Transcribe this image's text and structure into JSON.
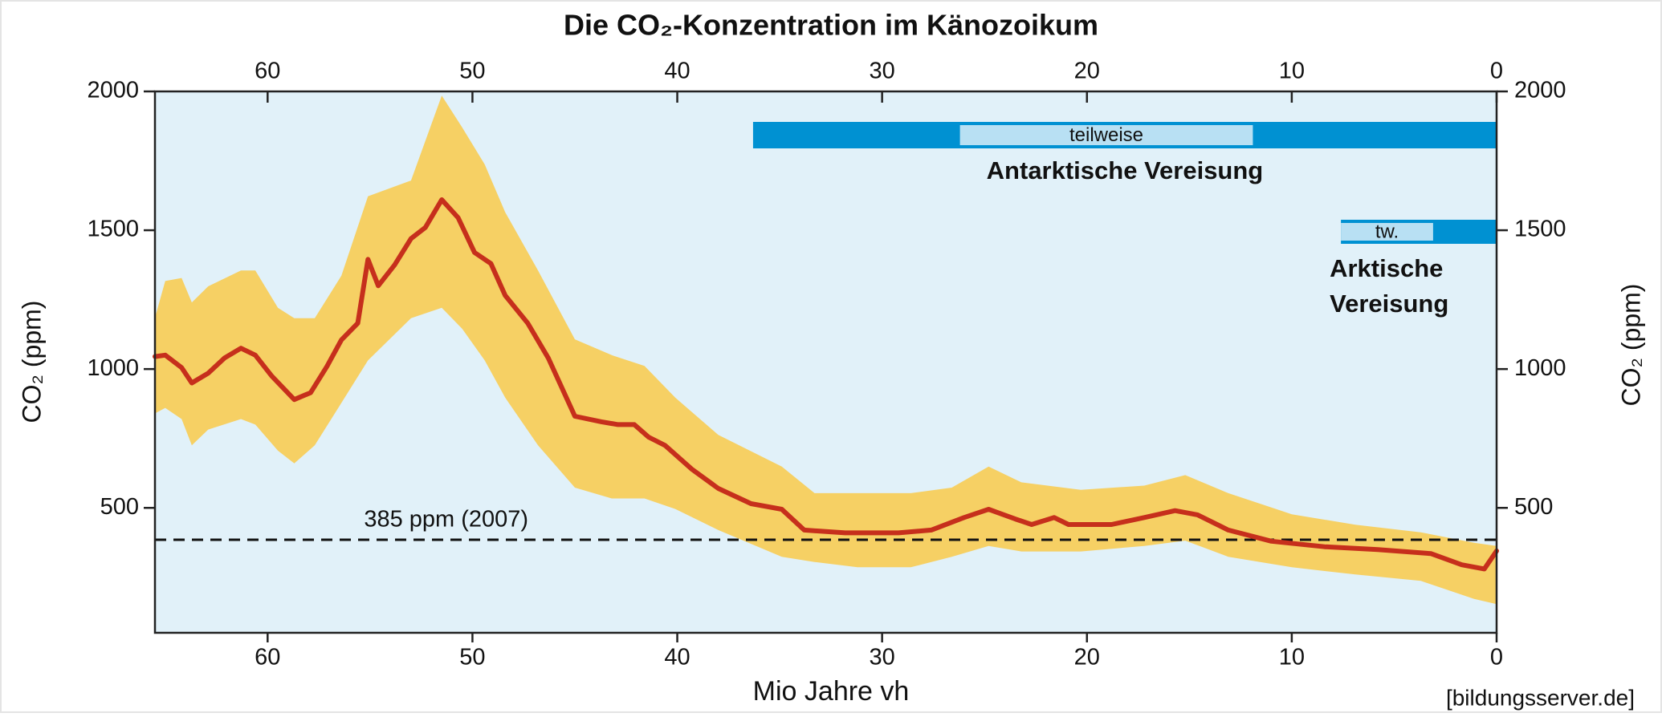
{
  "chart_data": {
    "type": "line",
    "title": "Die CO₂-Konzentration im Känozoikum",
    "x_label": "Mio Jahre vh",
    "y_label": "CO₂ (ppm)",
    "y2_label": "CO₂ (ppm)",
    "source": "[bildungsserver.de]",
    "xlim": [
      65.5,
      0
    ],
    "xticks": [
      60,
      50,
      40,
      30,
      20,
      10,
      0
    ],
    "ylim": [
      50,
      2000
    ],
    "yticks": [
      500,
      1000,
      1500,
      2000
    ],
    "y2lim": [
      50,
      2000
    ],
    "y2ticks": [
      500,
      1000,
      1500,
      2000
    ],
    "color": "#c62f1c",
    "x": [
      65.5,
      65.0,
      64.2,
      63.7,
      62.9,
      62.1,
      61.3,
      60.6,
      59.8,
      58.7,
      57.9,
      57.1,
      56.4,
      55.6,
      55.1,
      54.6,
      53.8,
      53.0,
      52.3,
      51.5,
      50.7,
      49.9,
      49.1,
      48.4,
      47.3,
      46.3,
      45.0,
      43.7,
      42.9,
      42.1,
      41.4,
      40.6,
      39.3,
      38.0,
      36.4,
      34.9,
      33.8,
      31.8,
      29.2,
      27.6,
      26.0,
      24.8,
      23.5,
      22.7,
      21.6,
      20.9,
      18.8,
      17.2,
      15.7,
      14.6,
      13.1,
      11.0,
      8.4,
      5.8,
      3.2,
      1.7,
      0.6,
      0
    ],
    "values": [
      1045,
      1050,
      1005,
      950,
      985,
      1040,
      1075,
      1050,
      975,
      890,
      915,
      1010,
      1105,
      1165,
      1395,
      1300,
      1375,
      1470,
      1510,
      1610,
      1545,
      1420,
      1380,
      1265,
      1165,
      1040,
      830,
      810,
      800,
      800,
      755,
      725,
      640,
      570,
      515,
      495,
      420,
      410,
      410,
      420,
      465,
      495,
      460,
      440,
      465,
      440,
      440,
      465,
      490,
      475,
      420,
      380,
      360,
      350,
      335,
      295,
      280,
      345
    ],
    "band_color": "#f6d064",
    "band_x": [
      65.5,
      65.0,
      64.2,
      63.7,
      62.9,
      61.3,
      60.6,
      59.5,
      58.7,
      57.7,
      56.4,
      55.1,
      53.0,
      51.5,
      50.5,
      49.4,
      48.4,
      46.8,
      45.0,
      43.2,
      41.6,
      40.1,
      38.0,
      34.9,
      33.3,
      31.2,
      28.6,
      26.6,
      24.8,
      23.2,
      20.3,
      17.2,
      15.2,
      13.1,
      10.0,
      6.9,
      3.7,
      1.1,
      0
    ],
    "band_upper": [
      1185,
      1317,
      1328,
      1240,
      1298,
      1355,
      1355,
      1221,
      1183,
      1183,
      1336,
      1622,
      1679,
      1985,
      1870,
      1737,
      1565,
      1355,
      1107,
      1050,
      1011,
      897,
      763,
      649,
      553,
      553,
      553,
      573,
      649,
      592,
      565,
      580,
      618,
      553,
      477,
      439,
      412,
      374,
      363
    ],
    "band_lower": [
      840,
      860,
      820,
      725,
      782,
      820,
      800,
      706,
      660,
      725,
      878,
      1031,
      1183,
      1221,
      1145,
      1031,
      897,
      725,
      573,
      534,
      534,
      496,
      420,
      324,
      305,
      286,
      286,
      324,
      363,
      343,
      343,
      363,
      382,
      324,
      286,
      260,
      237,
      172,
      153
    ],
    "reference_line": {
      "value": 385,
      "label": "385 ppm (2007)"
    },
    "glaciations": [
      {
        "label": [
          "Antarktische Vereisung"
        ],
        "start": 36.3,
        "end": 0,
        "partial_label": "teilweise",
        "partial_start": 26.2,
        "partial_end": 11.9
      },
      {
        "label": [
          "Arktische",
          "Vereisung"
        ],
        "start": 7.6,
        "end": 0,
        "partial_label": "tw.",
        "partial_start": 7.6,
        "partial_end": 3.1
      }
    ],
    "bar_color": "#0091d2",
    "partial_color": "#b8e0f3",
    "background": "#e1f1f9"
  }
}
